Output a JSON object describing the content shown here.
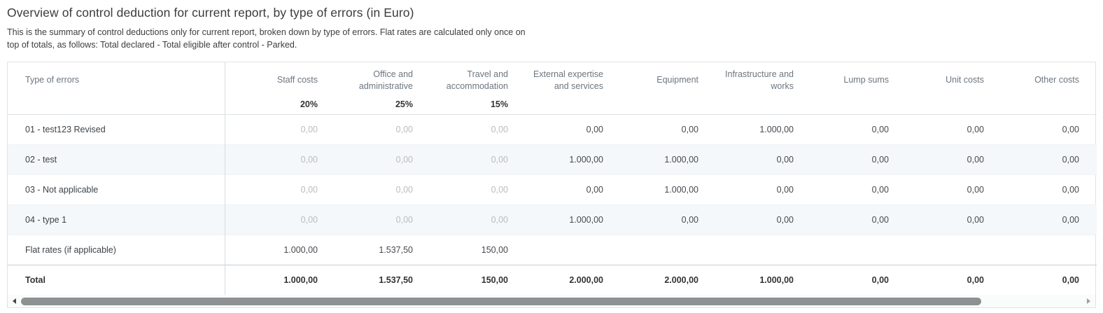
{
  "page": {
    "title": "Overview of control deduction for current report, by type of errors (in Euro)",
    "subtitle": "This is the summary of control deductions only for current report, broken down by type of errors. Flat rates are calculated only once on top of totals, as follows: Total declared - Total eligible after control - Parked."
  },
  "table": {
    "corner_header": "Type of errors",
    "columns": [
      {
        "label": "Staff costs",
        "rate": "20%"
      },
      {
        "label": "Office and administrative",
        "rate": "25%"
      },
      {
        "label": "Travel and accommodation",
        "rate": "15%"
      },
      {
        "label": "External expertise and services",
        "rate": ""
      },
      {
        "label": "Equipment",
        "rate": ""
      },
      {
        "label": "Infrastructure and works",
        "rate": ""
      },
      {
        "label": "Lump sums",
        "rate": ""
      },
      {
        "label": "Unit costs",
        "rate": ""
      },
      {
        "label": "Other costs",
        "rate": ""
      }
    ],
    "rows": [
      {
        "label": "01 - test123 Revised",
        "flat_rate_cells_muted": true,
        "values": [
          "0,00",
          "0,00",
          "0,00",
          "0,00",
          "0,00",
          "1.000,00",
          "0,00",
          "0,00",
          "0,00"
        ]
      },
      {
        "label": "02 - test",
        "flat_rate_cells_muted": true,
        "values": [
          "0,00",
          "0,00",
          "0,00",
          "1.000,00",
          "1.000,00",
          "0,00",
          "0,00",
          "0,00",
          "0,00"
        ]
      },
      {
        "label": "03 - Not applicable",
        "flat_rate_cells_muted": true,
        "values": [
          "0,00",
          "0,00",
          "0,00",
          "0,00",
          "1.000,00",
          "0,00",
          "0,00",
          "0,00",
          "0,00"
        ]
      },
      {
        "label": "04 - type 1",
        "flat_rate_cells_muted": true,
        "values": [
          "0,00",
          "0,00",
          "0,00",
          "1.000,00",
          "0,00",
          "0,00",
          "0,00",
          "0,00",
          "0,00"
        ]
      },
      {
        "label": "Flat rates (if applicable)",
        "flat_rate_cells_muted": false,
        "values": [
          "1.000,00",
          "1.537,50",
          "150,00",
          "",
          "",
          "",
          "",
          "",
          ""
        ]
      }
    ],
    "total_row": {
      "label": "Total",
      "values": [
        "1.000,00",
        "1.537,50",
        "150,00",
        "2.000,00",
        "2.000,00",
        "1.000,00",
        "0,00",
        "0,00",
        "0,00"
      ]
    }
  },
  "scrollbar": {
    "left_icon": "scroll-left-arrow",
    "right_icon": "scroll-right-arrow",
    "thumb_percent": 90.5
  },
  "colors": {
    "zebra_row": "#f5f8fa",
    "muted_value": "#b8bcc0",
    "header_text": "#6d7680",
    "scrollbar_thumb": "#8e9091"
  }
}
